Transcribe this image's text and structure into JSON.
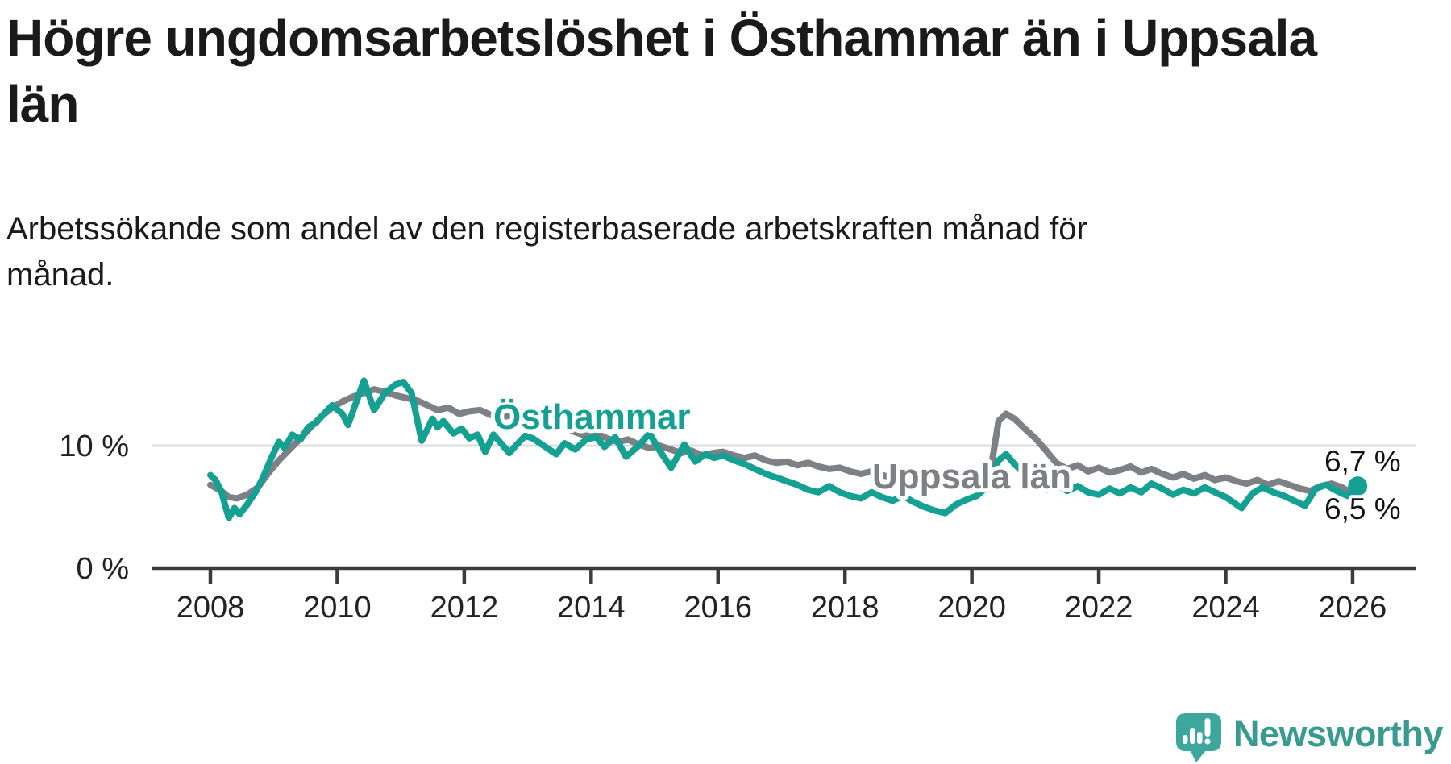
{
  "page": {
    "title_lines": [
      "Högre ungdomsarbetslöshet i Östhammar än i Uppsala",
      "län"
    ],
    "subtitle_lines": [
      "Arbetssökande som andel av den registerbaserade arbetskraften månad för",
      "månad."
    ]
  },
  "branding": {
    "wordmark": "Newsworthy",
    "logo_icon": "speech-bubble-bar-chart-exclamation-icon",
    "brand_color": "#3aa096"
  },
  "chart_data": {
    "type": "line",
    "title": "Högre ungdomsarbetslöshet i Östhammar än i Uppsala län",
    "subtitle": "Arbetssökande som andel av den registerbaserade arbetskraften månad för månad.",
    "unit": "%",
    "x_range": [
      2008,
      2026.2
    ],
    "ylim": [
      0,
      16
    ],
    "grid": "single-horizontal-gridline-at-10",
    "legend_position": "inline-labels-on-lines",
    "axis_color": "#3c3c3c",
    "grid_color": "#dcdcdc",
    "tick_text_color": "#222222",
    "yticks": [
      {
        "v": 0,
        "label": "0 %"
      },
      {
        "v": 10,
        "label": "10 %"
      }
    ],
    "xticks": [
      {
        "v": 2008,
        "label": "2008"
      },
      {
        "v": 2010,
        "label": "2010"
      },
      {
        "v": 2012,
        "label": "2012"
      },
      {
        "v": 2014,
        "label": "2014"
      },
      {
        "v": 2016,
        "label": "2016"
      },
      {
        "v": 2018,
        "label": "2018"
      },
      {
        "v": 2020,
        "label": "2020"
      },
      {
        "v": 2022,
        "label": "2022"
      },
      {
        "v": 2024,
        "label": "2024"
      },
      {
        "v": 2026,
        "label": "2026"
      }
    ],
    "series": [
      {
        "name": "Östhammar",
        "color": "#14a092",
        "end_label": "6,7 %",
        "end_value": 6.7,
        "end_dot": true,
        "points": [
          [
            2008.0,
            7.6
          ],
          [
            2008.08,
            7.2
          ],
          [
            2008.17,
            6.3
          ],
          [
            2008.29,
            4.1
          ],
          [
            2008.38,
            4.9
          ],
          [
            2008.46,
            4.4
          ],
          [
            2008.58,
            5.2
          ],
          [
            2008.71,
            6.2
          ],
          [
            2008.83,
            7.4
          ],
          [
            2008.96,
            9.0
          ],
          [
            2009.08,
            10.3
          ],
          [
            2009.17,
            9.8
          ],
          [
            2009.29,
            10.9
          ],
          [
            2009.42,
            10.5
          ],
          [
            2009.54,
            11.5
          ],
          [
            2009.67,
            11.9
          ],
          [
            2009.79,
            12.6
          ],
          [
            2009.92,
            13.3
          ],
          [
            2010.08,
            12.6
          ],
          [
            2010.17,
            11.7
          ],
          [
            2010.42,
            15.3
          ],
          [
            2010.58,
            12.9
          ],
          [
            2010.75,
            14.3
          ],
          [
            2010.92,
            15.0
          ],
          [
            2011.04,
            15.2
          ],
          [
            2011.17,
            14.3
          ],
          [
            2011.33,
            10.4
          ],
          [
            2011.5,
            12.2
          ],
          [
            2011.58,
            11.5
          ],
          [
            2011.67,
            12.0
          ],
          [
            2011.83,
            11.0
          ],
          [
            2011.96,
            11.4
          ],
          [
            2012.08,
            10.6
          ],
          [
            2012.21,
            10.9
          ],
          [
            2012.33,
            9.5
          ],
          [
            2012.46,
            10.9
          ],
          [
            2012.58,
            10.2
          ],
          [
            2012.71,
            9.4
          ],
          [
            2012.83,
            10.1
          ],
          [
            2012.96,
            10.8
          ],
          [
            2013.08,
            10.6
          ],
          [
            2013.25,
            10.0
          ],
          [
            2013.45,
            9.3
          ],
          [
            2013.58,
            10.2
          ],
          [
            2013.75,
            9.7
          ],
          [
            2013.92,
            10.5
          ],
          [
            2014.08,
            10.7
          ],
          [
            2014.21,
            9.9
          ],
          [
            2014.38,
            10.7
          ],
          [
            2014.55,
            9.1
          ],
          [
            2014.75,
            10.0
          ],
          [
            2014.92,
            11.0
          ],
          [
            2015.08,
            9.6
          ],
          [
            2015.26,
            8.2
          ],
          [
            2015.47,
            10.1
          ],
          [
            2015.64,
            8.7
          ],
          [
            2015.8,
            9.3
          ],
          [
            2015.94,
            9.0
          ],
          [
            2016.08,
            9.2
          ],
          [
            2016.25,
            8.8
          ],
          [
            2016.42,
            8.5
          ],
          [
            2016.58,
            8.1
          ],
          [
            2016.75,
            7.7
          ],
          [
            2016.92,
            7.4
          ],
          [
            2017.08,
            7.1
          ],
          [
            2017.25,
            6.8
          ],
          [
            2017.42,
            6.4
          ],
          [
            2017.58,
            6.2
          ],
          [
            2017.75,
            6.7
          ],
          [
            2017.92,
            6.2
          ],
          [
            2018.08,
            5.9
          ],
          [
            2018.25,
            5.7
          ],
          [
            2018.42,
            6.2
          ],
          [
            2018.58,
            5.8
          ],
          [
            2018.75,
            5.5
          ],
          [
            2018.92,
            5.9
          ],
          [
            2019.08,
            5.4
          ],
          [
            2019.25,
            5.0
          ],
          [
            2019.42,
            4.7
          ],
          [
            2019.58,
            4.5
          ],
          [
            2019.75,
            5.2
          ],
          [
            2019.92,
            5.6
          ],
          [
            2020.08,
            5.9
          ],
          [
            2020.25,
            6.7
          ],
          [
            2020.42,
            8.8
          ],
          [
            2020.54,
            9.3
          ],
          [
            2020.67,
            8.5
          ],
          [
            2020.83,
            7.7
          ],
          [
            2021.0,
            6.9
          ],
          [
            2021.17,
            6.4
          ],
          [
            2021.33,
            6.8
          ],
          [
            2021.5,
            6.3
          ],
          [
            2021.67,
            6.7
          ],
          [
            2021.83,
            6.2
          ],
          [
            2022.0,
            6.0
          ],
          [
            2022.17,
            6.5
          ],
          [
            2022.33,
            6.1
          ],
          [
            2022.5,
            6.6
          ],
          [
            2022.67,
            6.2
          ],
          [
            2022.83,
            6.9
          ],
          [
            2023.0,
            6.5
          ],
          [
            2023.17,
            6.0
          ],
          [
            2023.33,
            6.4
          ],
          [
            2023.5,
            6.1
          ],
          [
            2023.67,
            6.6
          ],
          [
            2023.83,
            6.2
          ],
          [
            2024.0,
            5.8
          ],
          [
            2024.25,
            4.9
          ],
          [
            2024.42,
            6.1
          ],
          [
            2024.58,
            6.6
          ],
          [
            2024.75,
            6.2
          ],
          [
            2024.92,
            5.9
          ],
          [
            2025.08,
            5.5
          ],
          [
            2025.25,
            5.1
          ],
          [
            2025.42,
            6.5
          ],
          [
            2025.58,
            6.8
          ],
          [
            2025.75,
            6.3
          ],
          [
            2025.92,
            5.9
          ],
          [
            2026.08,
            6.7
          ]
        ]
      },
      {
        "name": "Uppsala län",
        "color": "#7d8084",
        "end_label": "6,5 %",
        "end_value": 6.5,
        "end_dot": false,
        "points": [
          [
            2008.0,
            6.8
          ],
          [
            2008.17,
            6.3
          ],
          [
            2008.29,
            5.8
          ],
          [
            2008.42,
            5.7
          ],
          [
            2008.58,
            6.0
          ],
          [
            2008.75,
            6.6
          ],
          [
            2008.92,
            7.8
          ],
          [
            2009.08,
            8.8
          ],
          [
            2009.25,
            9.7
          ],
          [
            2009.42,
            10.6
          ],
          [
            2009.58,
            11.5
          ],
          [
            2009.75,
            12.4
          ],
          [
            2009.92,
            13.1
          ],
          [
            2010.08,
            13.6
          ],
          [
            2010.25,
            14.0
          ],
          [
            2010.42,
            14.3
          ],
          [
            2010.58,
            14.6
          ],
          [
            2010.75,
            14.4
          ],
          [
            2010.92,
            14.1
          ],
          [
            2011.08,
            13.9
          ],
          [
            2011.25,
            13.7
          ],
          [
            2011.42,
            13.3
          ],
          [
            2011.58,
            12.9
          ],
          [
            2011.75,
            13.1
          ],
          [
            2011.92,
            12.6
          ],
          [
            2012.08,
            12.8
          ],
          [
            2012.25,
            12.9
          ],
          [
            2012.42,
            12.5
          ],
          [
            2012.58,
            12.3
          ],
          [
            2012.75,
            12.5
          ],
          [
            2012.92,
            11.8
          ],
          [
            2013.08,
            12.0
          ],
          [
            2013.25,
            12.1
          ],
          [
            2013.42,
            11.8
          ],
          [
            2013.58,
            11.5
          ],
          [
            2013.75,
            11.1
          ],
          [
            2013.92,
            10.8
          ],
          [
            2014.08,
            11.0
          ],
          [
            2014.25,
            10.6
          ],
          [
            2014.42,
            10.3
          ],
          [
            2014.58,
            10.5
          ],
          [
            2014.75,
            10.1
          ],
          [
            2014.92,
            9.8
          ],
          [
            2015.08,
            10.0
          ],
          [
            2015.25,
            9.7
          ],
          [
            2015.42,
            9.4
          ],
          [
            2015.58,
            9.6
          ],
          [
            2015.75,
            9.2
          ],
          [
            2015.92,
            9.4
          ],
          [
            2016.08,
            9.5
          ],
          [
            2016.25,
            9.2
          ],
          [
            2016.42,
            9.0
          ],
          [
            2016.58,
            9.2
          ],
          [
            2016.75,
            8.8
          ],
          [
            2016.92,
            8.6
          ],
          [
            2017.08,
            8.7
          ],
          [
            2017.25,
            8.4
          ],
          [
            2017.42,
            8.6
          ],
          [
            2017.58,
            8.3
          ],
          [
            2017.75,
            8.1
          ],
          [
            2017.92,
            8.2
          ],
          [
            2018.08,
            7.9
          ],
          [
            2018.25,
            7.7
          ],
          [
            2018.42,
            7.9
          ],
          [
            2018.58,
            7.6
          ],
          [
            2018.75,
            7.4
          ],
          [
            2018.92,
            7.6
          ],
          [
            2019.08,
            7.4
          ],
          [
            2019.25,
            7.2
          ],
          [
            2019.42,
            7.4
          ],
          [
            2019.58,
            7.1
          ],
          [
            2019.75,
            7.3
          ],
          [
            2019.92,
            7.2
          ],
          [
            2020.08,
            7.4
          ],
          [
            2020.21,
            7.5
          ],
          [
            2020.29,
            7.8
          ],
          [
            2020.42,
            12.0
          ],
          [
            2020.54,
            12.6
          ],
          [
            2020.67,
            12.2
          ],
          [
            2020.83,
            11.4
          ],
          [
            2021.0,
            10.6
          ],
          [
            2021.17,
            9.6
          ],
          [
            2021.33,
            8.6
          ],
          [
            2021.5,
            8.1
          ],
          [
            2021.67,
            8.4
          ],
          [
            2021.83,
            7.9
          ],
          [
            2022.0,
            8.2
          ],
          [
            2022.17,
            7.8
          ],
          [
            2022.33,
            8.0
          ],
          [
            2022.5,
            8.3
          ],
          [
            2022.67,
            7.8
          ],
          [
            2022.83,
            8.1
          ],
          [
            2023.0,
            7.7
          ],
          [
            2023.17,
            7.4
          ],
          [
            2023.33,
            7.7
          ],
          [
            2023.5,
            7.3
          ],
          [
            2023.67,
            7.6
          ],
          [
            2023.83,
            7.2
          ],
          [
            2024.0,
            7.4
          ],
          [
            2024.17,
            7.1
          ],
          [
            2024.33,
            6.9
          ],
          [
            2024.5,
            7.2
          ],
          [
            2024.67,
            6.8
          ],
          [
            2024.83,
            7.1
          ],
          [
            2025.0,
            6.8
          ],
          [
            2025.17,
            6.5
          ],
          [
            2025.33,
            6.3
          ],
          [
            2025.5,
            6.7
          ],
          [
            2025.67,
            6.9
          ],
          [
            2025.83,
            6.6
          ],
          [
            2026.0,
            6.1
          ],
          [
            2026.08,
            6.5
          ]
        ]
      }
    ]
  }
}
